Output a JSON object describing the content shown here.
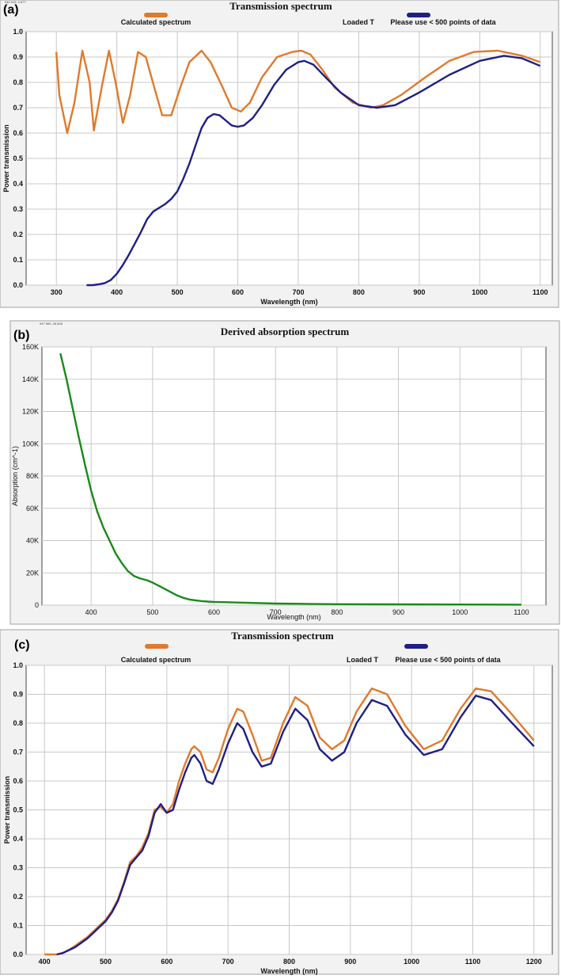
{
  "chart_data": [
    {
      "panel_label": "(a)",
      "type": "line",
      "title": "Transmission spectrum",
      "corner_text": "940 515, 0.877",
      "xlabel": "Wavelength (nm)",
      "ylabel": "Power transmission",
      "xlim": [
        250,
        1120
      ],
      "ylim": [
        0,
        1.0
      ],
      "x_ticks": [
        300,
        400,
        500,
        600,
        700,
        800,
        900,
        1000,
        1100
      ],
      "y_ticks": [
        0,
        0.1,
        0.2,
        0.3,
        0.4,
        0.5,
        0.6,
        0.7,
        0.8,
        0.9,
        1
      ],
      "y_tick_labels": [
        "0.0",
        "0.1",
        "0.2",
        "0.3",
        "0.4",
        "0.5",
        "0.6",
        "0.7",
        "0.8",
        "0.9",
        "1.0"
      ],
      "grid": true,
      "legend_position": "top",
      "legend": [
        {
          "label": "Calculated spectrum",
          "color": "#e07a2c"
        },
        {
          "label": "Loaded T",
          "color": ""
        },
        {
          "label": "Please use < 500 points of data",
          "color": "#1f1f86"
        }
      ],
      "series": [
        {
          "name": "Calculated spectrum",
          "color": "#e07a2c",
          "x": [
            300,
            305,
            318,
            330,
            343,
            355,
            362,
            375,
            387,
            398,
            410,
            422,
            435,
            448,
            462,
            475,
            490,
            505,
            520,
            540,
            555,
            575,
            590,
            605,
            620,
            640,
            665,
            690,
            705,
            720,
            740,
            760,
            790,
            820,
            840,
            870,
            910,
            950,
            990,
            1030,
            1070,
            1100
          ],
          "y": [
            0.92,
            0.75,
            0.6,
            0.72,
            0.925,
            0.8,
            0.61,
            0.78,
            0.925,
            0.8,
            0.64,
            0.75,
            0.92,
            0.9,
            0.78,
            0.67,
            0.67,
            0.78,
            0.88,
            0.925,
            0.88,
            0.78,
            0.7,
            0.685,
            0.72,
            0.82,
            0.9,
            0.92,
            0.925,
            0.91,
            0.85,
            0.78,
            0.72,
            0.7,
            0.71,
            0.75,
            0.82,
            0.885,
            0.92,
            0.925,
            0.905,
            0.88
          ]
        },
        {
          "name": "Please use < 500 points of data",
          "color": "#1f1f86",
          "x": [
            350,
            360,
            370,
            380,
            390,
            400,
            410,
            420,
            430,
            440,
            450,
            460,
            470,
            480,
            490,
            500,
            510,
            520,
            530,
            540,
            550,
            560,
            570,
            580,
            590,
            600,
            610,
            625,
            640,
            660,
            680,
            700,
            710,
            725,
            745,
            770,
            800,
            830,
            860,
            900,
            950,
            1000,
            1040,
            1070,
            1100
          ],
          "y": [
            0.0,
            0.0,
            0.003,
            0.008,
            0.02,
            0.045,
            0.08,
            0.12,
            0.165,
            0.21,
            0.26,
            0.29,
            0.305,
            0.32,
            0.34,
            0.37,
            0.42,
            0.48,
            0.55,
            0.62,
            0.66,
            0.675,
            0.67,
            0.65,
            0.63,
            0.625,
            0.63,
            0.66,
            0.71,
            0.79,
            0.85,
            0.88,
            0.885,
            0.87,
            0.82,
            0.76,
            0.71,
            0.7,
            0.71,
            0.76,
            0.83,
            0.885,
            0.905,
            0.895,
            0.865
          ]
        }
      ]
    },
    {
      "panel_label": "(b)",
      "type": "line",
      "title": "Derived absorption spectrum",
      "corner_text": "947 960, 26.606",
      "xlabel": "Wavelength (nm)",
      "ylabel": "Absorption (cm^-1)",
      "xlim": [
        320,
        1140
      ],
      "ylim": [
        0,
        160000
      ],
      "x_ticks": [
        400,
        500,
        600,
        700,
        800,
        900,
        1000,
        1100
      ],
      "y_ticks": [
        0,
        20000,
        40000,
        60000,
        80000,
        100000,
        120000,
        140000,
        160000
      ],
      "y_tick_labels": [
        "0",
        "20K",
        "40K",
        "60K",
        "80K",
        "100K",
        "120K",
        "140K",
        "160K"
      ],
      "grid": true,
      "series": [
        {
          "name": "",
          "color": "#1a8a1a",
          "x": [
            350,
            360,
            370,
            380,
            390,
            400,
            410,
            420,
            430,
            440,
            450,
            460,
            470,
            480,
            490,
            500,
            510,
            520,
            530,
            540,
            550,
            560,
            570,
            580,
            590,
            600,
            620,
            650,
            700,
            750,
            800,
            900,
            1000,
            1100
          ],
          "y": [
            156000,
            140000,
            122000,
            104000,
            87000,
            71000,
            58000,
            48000,
            40000,
            32000,
            26000,
            21000,
            18000,
            16500,
            15500,
            14000,
            12000,
            10000,
            8000,
            6000,
            4500,
            3500,
            3000,
            2500,
            2200,
            2000,
            1800,
            1500,
            1000,
            800,
            600,
            500,
            400,
            300
          ]
        }
      ]
    },
    {
      "panel_label": "(c)",
      "type": "line",
      "title": "Transmission spectrum",
      "xlabel": "Wavelength (nm)",
      "ylabel": "Power transmission",
      "xlim": [
        370,
        1230
      ],
      "ylim": [
        0,
        1.0
      ],
      "x_ticks": [
        400,
        500,
        600,
        700,
        800,
        900,
        1000,
        1100,
        1200
      ],
      "y_ticks": [
        0,
        0.1,
        0.2,
        0.3,
        0.4,
        0.5,
        0.6,
        0.7,
        0.8,
        0.9,
        1
      ],
      "y_tick_labels": [
        "0.0",
        "0.1",
        "0.2",
        "0.3",
        "0.4",
        "0.5",
        "0.6",
        "0.7",
        "0.8",
        "0.9",
        "1.0"
      ],
      "grid": true,
      "legend_position": "top",
      "legend": [
        {
          "label": "Calculated spectrum",
          "color": "#e07a2c"
        },
        {
          "label": "Loaded T",
          "color": ""
        },
        {
          "label": "Please use < 500 points of data",
          "color": "#1f1f86"
        }
      ],
      "series": [
        {
          "name": "Calculated spectrum",
          "color": "#e07a2c",
          "x": [
            400,
            420,
            430,
            440,
            450,
            460,
            470,
            480,
            490,
            500,
            510,
            520,
            530,
            540,
            550,
            560,
            570,
            580,
            590,
            600,
            610,
            620,
            630,
            640,
            645,
            655,
            665,
            675,
            685,
            700,
            715,
            725,
            740,
            755,
            770,
            790,
            810,
            830,
            850,
            870,
            890,
            910,
            935,
            960,
            990,
            1020,
            1050,
            1080,
            1105,
            1130,
            1160,
            1200
          ],
          "y": [
            0.0,
            0.0,
            0.005,
            0.015,
            0.03,
            0.045,
            0.06,
            0.08,
            0.1,
            0.12,
            0.15,
            0.19,
            0.25,
            0.32,
            0.34,
            0.37,
            0.42,
            0.5,
            0.51,
            0.49,
            0.52,
            0.6,
            0.66,
            0.71,
            0.72,
            0.7,
            0.64,
            0.63,
            0.68,
            0.78,
            0.85,
            0.84,
            0.76,
            0.67,
            0.68,
            0.8,
            0.89,
            0.86,
            0.75,
            0.71,
            0.74,
            0.84,
            0.92,
            0.9,
            0.79,
            0.71,
            0.74,
            0.85,
            0.92,
            0.91,
            0.84,
            0.74
          ]
        },
        {
          "name": "Please use < 500 points of data",
          "color": "#1f1f86",
          "x": [
            420,
            430,
            440,
            450,
            460,
            470,
            480,
            490,
            500,
            510,
            520,
            530,
            540,
            550,
            560,
            570,
            580,
            590,
            600,
            610,
            620,
            630,
            640,
            645,
            655,
            665,
            675,
            685,
            700,
            715,
            725,
            740,
            755,
            770,
            790,
            810,
            830,
            850,
            870,
            890,
            910,
            935,
            960,
            990,
            1020,
            1050,
            1080,
            1105,
            1130,
            1160,
            1200
          ],
          "y": [
            0.0,
            0.005,
            0.015,
            0.025,
            0.04,
            0.055,
            0.075,
            0.095,
            0.115,
            0.145,
            0.185,
            0.245,
            0.31,
            0.335,
            0.36,
            0.41,
            0.49,
            0.52,
            0.49,
            0.5,
            0.57,
            0.63,
            0.68,
            0.69,
            0.66,
            0.6,
            0.59,
            0.64,
            0.73,
            0.8,
            0.78,
            0.7,
            0.65,
            0.66,
            0.77,
            0.85,
            0.81,
            0.71,
            0.67,
            0.7,
            0.8,
            0.88,
            0.86,
            0.76,
            0.69,
            0.71,
            0.82,
            0.895,
            0.88,
            0.81,
            0.72
          ]
        }
      ]
    }
  ]
}
